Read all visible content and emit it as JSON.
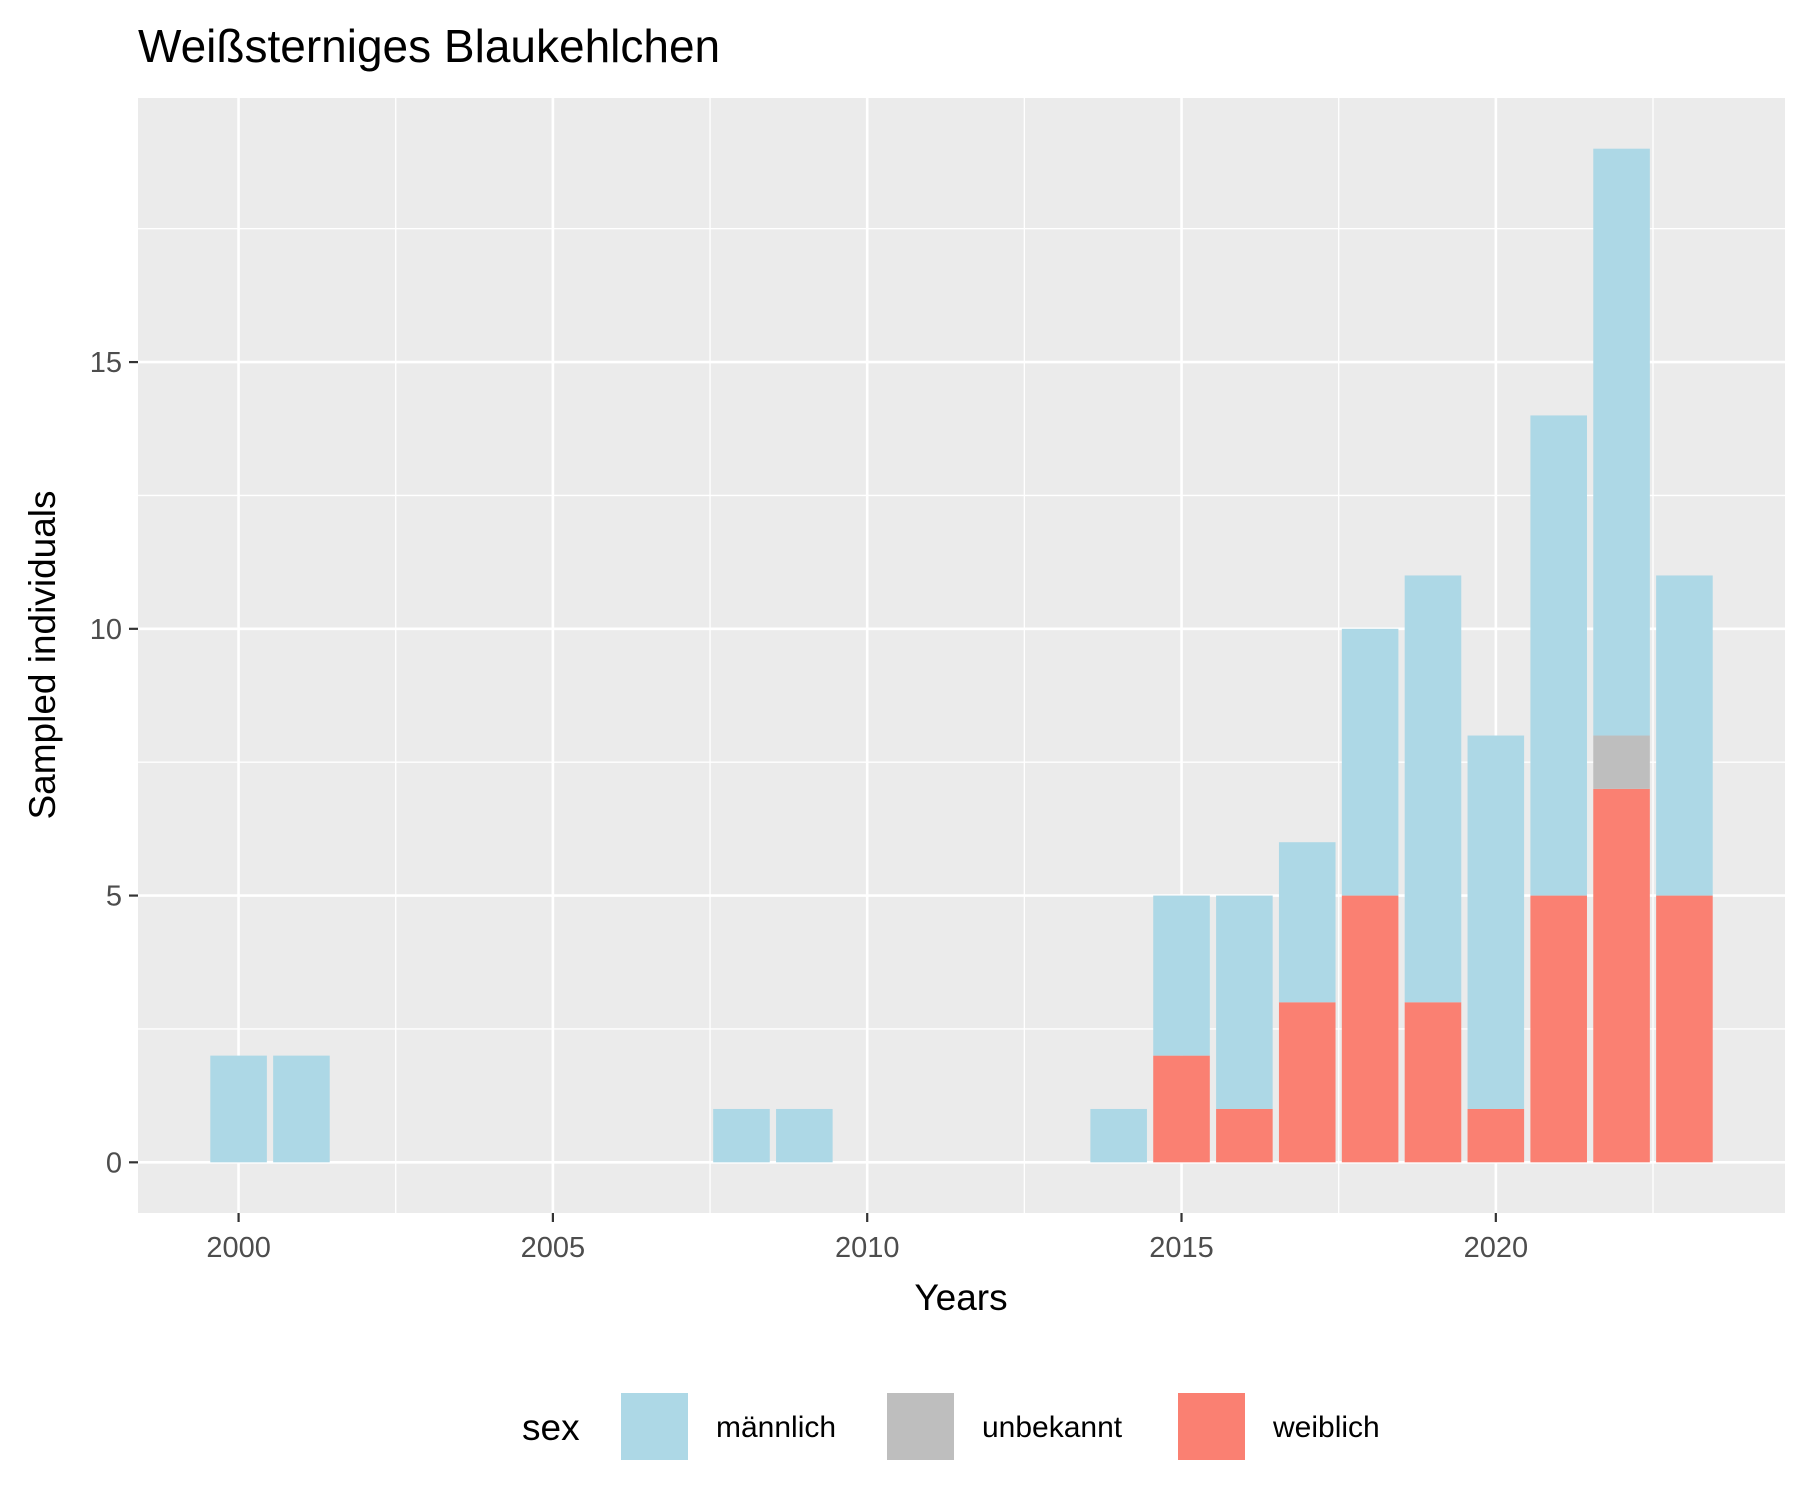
{
  "chart_data": {
    "type": "bar",
    "stacked": true,
    "title": "Weißsterniges Blaukehlchen",
    "xlabel": "Years",
    "ylabel": "Sampled individuals",
    "x": [
      2000,
      2001,
      2008,
      2009,
      2014,
      2015,
      2016,
      2017,
      2018,
      2019,
      2020,
      2021,
      2022,
      2023
    ],
    "series": [
      {
        "name": "weiblich",
        "color": "#FA8072",
        "values": [
          0,
          0,
          0,
          0,
          0,
          2,
          1,
          3,
          5,
          3,
          1,
          5,
          7,
          5
        ]
      },
      {
        "name": "unbekannt",
        "color": "#BEBEBE",
        "values": [
          0,
          0,
          0,
          0,
          0,
          0,
          0,
          0,
          0,
          0,
          0,
          0,
          1,
          0
        ]
      },
      {
        "name": "männlich",
        "color": "#ADD8E6",
        "values": [
          2,
          2,
          1,
          1,
          1,
          3,
          4,
          3,
          5,
          8,
          7,
          9,
          11,
          6
        ]
      }
    ],
    "xlim": [
      1998.4,
      2024.6
    ],
    "ylim": [
      -0.95,
      19.95
    ],
    "x_ticks": [
      2000,
      2005,
      2010,
      2015,
      2020
    ],
    "y_ticks": [
      0,
      5,
      10,
      15
    ],
    "grid": true,
    "legend": {
      "title": "sex",
      "position": "bottom",
      "entries": [
        {
          "label": "männlich",
          "color": "#ADD8E6"
        },
        {
          "label": "unbekannt",
          "color": "#BEBEBE"
        },
        {
          "label": "weiblich",
          "color": "#FA8072"
        }
      ]
    }
  }
}
